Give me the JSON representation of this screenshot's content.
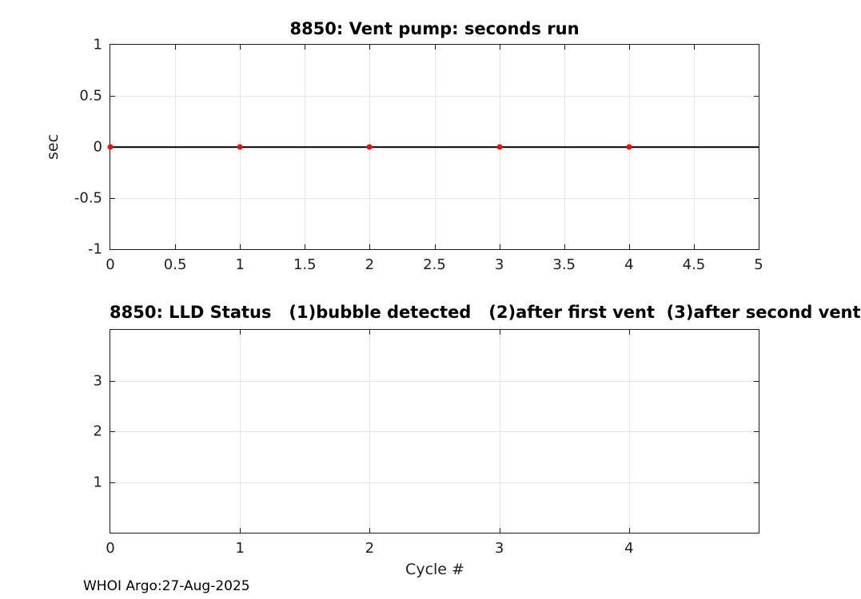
{
  "chart_data": [
    {
      "type": "line",
      "title": "8850: Vent pump: seconds run",
      "ylabel": "sec",
      "x": [
        0,
        1,
        2,
        3,
        4
      ],
      "y": [
        0,
        0,
        0,
        0,
        0
      ],
      "xlim": [
        0,
        5
      ],
      "ylim": [
        -1,
        1
      ],
      "xticks": [
        0,
        0.5,
        1,
        1.5,
        2,
        2.5,
        3,
        3.5,
        4,
        4.5,
        5
      ],
      "yticks": [
        -1,
        -0.5,
        0,
        0.5,
        1
      ],
      "grid": true,
      "legend": "none",
      "zero_line": true,
      "line_color": "#000000",
      "marker_color": "#e01408"
    },
    {
      "type": "line",
      "title": "8850: LLD Status   (1)bubble detected   (2)after first vent  (3)after second vent",
      "xlabel": "Cycle #",
      "x": [],
      "y": [],
      "xlim": [
        0,
        5
      ],
      "ylim": [
        0,
        4
      ],
      "xticks": [
        0,
        1,
        2,
        3,
        4
      ],
      "yticks": [
        1,
        2,
        3
      ],
      "grid": true,
      "legend": "none",
      "zero_line": false
    }
  ],
  "footer": "WHOI Argo:27-Aug-2025"
}
